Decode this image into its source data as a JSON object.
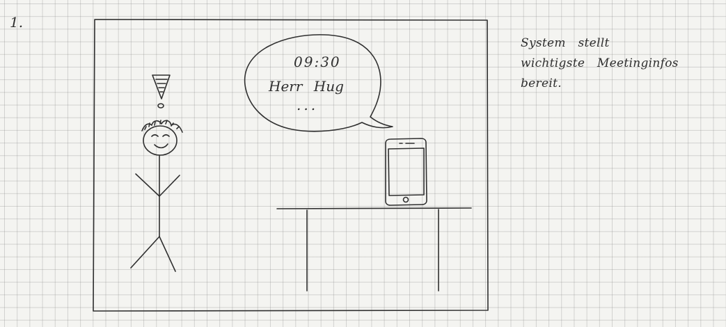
{
  "step_number": "1.",
  "speech_bubble": {
    "time": "09:30",
    "name": "Herr Hug",
    "ellipsis": "..."
  },
  "caption": "System stellt\nwichtigste Meetinginfos\nbereit.",
  "colors": {
    "ink": "#2f2f2f",
    "paper": "#f4f4f1",
    "grid": "#b8b8b8"
  }
}
